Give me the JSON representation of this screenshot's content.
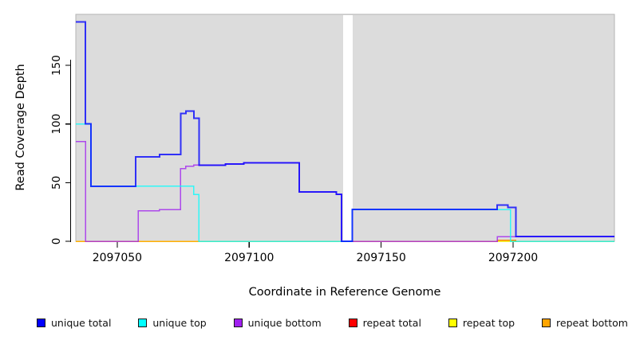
{
  "chart_data": {
    "type": "step-line",
    "title": "",
    "xlabel": "Coordinate in Reference Genome",
    "ylabel": "Read Coverage Depth",
    "xlim": [
      2097034.3,
      2097238.4
    ],
    "ylim": [
      0,
      193.5
    ],
    "x_ticks": [
      2097050,
      2097100,
      2097150,
      2097200
    ],
    "y_ticks": [
      0,
      50,
      100,
      150
    ],
    "grid": false,
    "plot_bg_color": "#dcdcdc",
    "plot_border_color": "#b5b5b5",
    "gap_region": {
      "x_start": 2097135.6,
      "x_end": 2097139.2,
      "color": "#ffffff"
    },
    "legend_position": "bottom",
    "draw_order": [
      3,
      4,
      5,
      2,
      1,
      0
    ],
    "line_opacity": 0.78,
    "series": [
      {
        "name": "unique total",
        "color": "#0000ff",
        "width": 2.0,
        "points": [
          [
            2097034.3,
            187
          ],
          [
            2097038,
            100
          ],
          [
            2097040,
            47
          ],
          [
            2097057,
            72
          ],
          [
            2097066,
            74
          ],
          [
            2097074,
            109
          ],
          [
            2097076,
            111
          ],
          [
            2097079,
            105
          ],
          [
            2097081,
            65
          ],
          [
            2097091,
            66
          ],
          [
            2097098,
            67
          ],
          [
            2097119,
            42
          ],
          [
            2097133,
            40
          ],
          [
            2097135,
            0
          ],
          [
            2097139,
            27
          ],
          [
            2097194,
            31
          ],
          [
            2097198,
            29
          ],
          [
            2097201,
            4
          ],
          [
            2097238.4,
            4
          ]
        ]
      },
      {
        "name": "unique top",
        "color": "#00ffff",
        "width": 1.5,
        "points": [
          [
            2097034.3,
            100
          ],
          [
            2097040,
            47
          ],
          [
            2097079,
            40
          ],
          [
            2097081,
            0
          ],
          [
            2097139,
            27
          ],
          [
            2097199,
            0
          ],
          [
            2097238.4,
            0
          ]
        ]
      },
      {
        "name": "unique bottom",
        "color": "#a020f0",
        "width": 1.5,
        "points": [
          [
            2097034.3,
            85
          ],
          [
            2097038,
            0
          ],
          [
            2097058,
            26
          ],
          [
            2097066,
            27
          ],
          [
            2097074,
            62
          ],
          [
            2097076,
            64
          ],
          [
            2097079,
            65
          ],
          [
            2097091,
            66
          ],
          [
            2097098,
            67
          ],
          [
            2097119,
            42
          ],
          [
            2097133,
            40
          ],
          [
            2097135,
            0
          ],
          [
            2097194,
            4
          ],
          [
            2097238.4,
            4
          ]
        ]
      },
      {
        "name": "repeat total",
        "color": "#ff0000",
        "width": 1.5,
        "points": [
          [
            2097034.3,
            0
          ],
          [
            2097194,
            1
          ],
          [
            2097201,
            0
          ],
          [
            2097238.4,
            0
          ]
        ]
      },
      {
        "name": "repeat top",
        "color": "#ffff00",
        "width": 1.5,
        "points": [
          [
            2097034.3,
            0
          ],
          [
            2097238.4,
            0
          ]
        ]
      },
      {
        "name": "repeat bottom",
        "color": "#ffa500",
        "width": 1.5,
        "points": [
          [
            2097034.3,
            0
          ],
          [
            2097194,
            1
          ],
          [
            2097201,
            0
          ],
          [
            2097238.4,
            0
          ]
        ]
      }
    ]
  }
}
